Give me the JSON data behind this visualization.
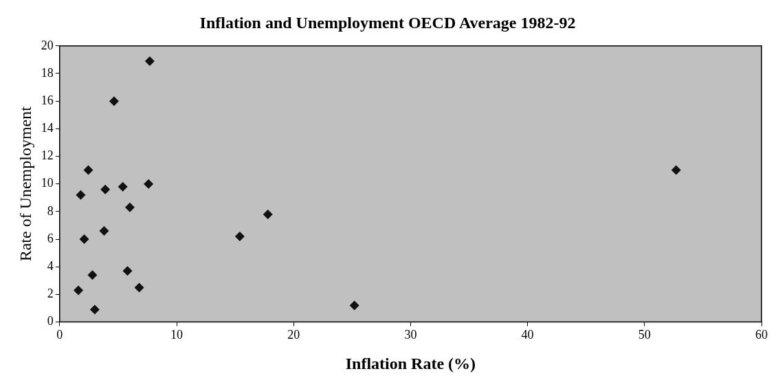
{
  "chart_data": {
    "type": "scatter",
    "title": "Inflation and Unemployment OECD Average 1982-92",
    "xlabel": "Inflation Rate (%)",
    "ylabel": "Rate of Unemployment",
    "xlim": [
      0,
      60
    ],
    "xticks": [
      0,
      10,
      20,
      30,
      40,
      50,
      60
    ],
    "ylim": [
      0,
      20
    ],
    "yticks": [
      0,
      2,
      4,
      6,
      8,
      10,
      12,
      14,
      16,
      18,
      20
    ],
    "marker": "diamond",
    "grid": false,
    "legend": false,
    "series": [
      {
        "color": "#111111",
        "x": [
          7.7,
          4.65,
          2.45,
          1.8,
          3.9,
          5.4,
          7.6,
          6.0,
          3.8,
          2.1,
          5.8,
          2.8,
          1.6,
          6.8,
          3.0,
          15.4,
          17.8,
          25.2,
          52.7
        ],
        "values": [
          18.9,
          16.0,
          11.0,
          9.2,
          9.6,
          9.8,
          10.0,
          8.3,
          6.6,
          6.0,
          3.7,
          3.4,
          2.3,
          2.5,
          0.9,
          6.2,
          7.8,
          1.2,
          11.0
        ]
      }
    ]
  }
}
